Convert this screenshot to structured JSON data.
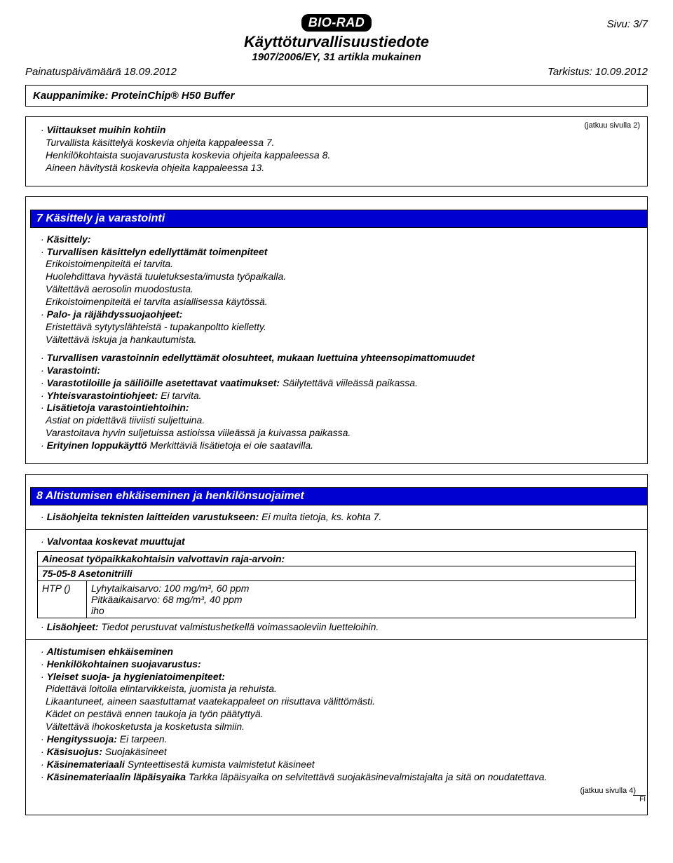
{
  "header": {
    "logo_text": "BIO-RAD",
    "doc_title": "Käyttöturvallisuustiedote",
    "doc_subtitle": "1907/2006/EY, 31 artikla mukainen",
    "page_number": "Sivu: 3/7",
    "print_date": "Painatuspäivämäärä 18.09.2012",
    "revision": "Tarkistus: 10.09.2012",
    "trade_name": "Kauppanimike: ProteinChip® H50 Buffer"
  },
  "section_refs": {
    "continued_from": "(jatkuu sivulla 2)",
    "heading": "Viittaukset muihin kohtiin",
    "lines": [
      "Turvallista käsittelyä koskevia ohjeita kappaleessa 7.",
      "Henkilökohtaista suojavarustusta koskevia ohjeita kappaleessa 8.",
      "Aineen hävitystä koskevia ohjeita kappaleessa 13."
    ]
  },
  "section7": {
    "title": "7 Käsittely ja varastointi",
    "handling_label": "Käsittely:",
    "precautions_label": "Turvallisen käsittelyn edellyttämät toimenpiteet",
    "precautions_lines": [
      "Erikoistoimenpiteitä ei tarvita.",
      "Huolehdittava hyvästä tuuletuksesta/imusta työpaikalla.",
      "Vältettävä aerosolin muodostusta.",
      "Erikoistoimenpiteitä ei tarvita asiallisessa käytössä."
    ],
    "fire_label": "Palo- ja räjähdyssuojaohjeet:",
    "fire_lines": [
      "Eristettävä sytytyslähteistä - tupakanpoltto kielletty.",
      "Vältettävä iskuja ja hankautumista."
    ],
    "storage_conditions_label": "Turvallisen varastoinnin edellyttämät olosuhteet, mukaan luettuina yhteensopimattomuudet",
    "storage_label": "Varastointi:",
    "storage_req_label": "Varastotiloille ja säiliöille asetettavat vaatimukset:",
    "storage_req_text": " Säilytettävä viileässä paikassa.",
    "combined_label": "Yhteisvarastointiohjeet:",
    "combined_text": " Ei tarvita.",
    "more_info_label": "Lisätietoja varastointiehtoihin:",
    "more_info_lines": [
      "Astiat on pidettävä tiiviisti suljettuina.",
      "Varastoitava hyvin suljetuissa astioissa viileässä ja kuivassa paikassa."
    ],
    "end_use_label": "Erityinen loppukäyttö",
    "end_use_text": " Merkittäviä lisätietoja ei ole saatavilla."
  },
  "section8": {
    "title": "8 Altistumisen ehkäiseminen ja henkilönsuojaimet",
    "tech_label": "Lisäohjeita teknisten laitteiden varustukseen:",
    "tech_text": " Ei muita tietoja, ks. kohta 7.",
    "control_params_label": "Valvontaa koskevat muuttujat",
    "table": {
      "header": "Aineosat työpaikkakohtaisin valvottavin raja-arvoin:",
      "substance": "75-05-8 Asetonitriili",
      "param_label": "HTP ()",
      "short_term": "Lyhytaikaisarvo: 100 mg/m³, 60 ppm",
      "long_term": "Pitkäaikaisarvo: 68 mg/m³, 40 ppm",
      "note": "iho"
    },
    "add_info_label": "Lisäohjeet:",
    "add_info_text": " Tiedot perustuvat valmistushetkellä voimassaoleviin luetteloihin.",
    "exposure_label": "Altistumisen ehkäiseminen",
    "ppe_label": "Henkilökohtainen suojavarustus:",
    "hygiene_label": "Yleiset suoja- ja hygieniatoimenpiteet:",
    "hygiene_lines": [
      "Pidettävä loitolla elintarvikkeista, juomista ja rehuista.",
      "Likaantuneet, aineen saastuttamat vaatekappaleet on riisuttava välittömästi.",
      "Kädet on pestävä ennen taukoja ja työn päätyttyä.",
      "Vältettävä ihokosketusta ja kosketusta silmiin."
    ],
    "resp_label": "Hengityssuoja:",
    "resp_text": " Ei tarpeen.",
    "hand_label": "Käsisuojus:",
    "hand_text": " Suojakäsineet",
    "glove_mat_label": "Käsinemateriaali",
    "glove_mat_text": " Synteettisestä kumista valmistetut käsineet",
    "glove_pen_label": "Käsinemateriaalin läpäisyaika",
    "glove_pen_text": " Tarkka läpäisyaika on selvitettävä suojakäsinevalmistajalta ja sitä on noudatettava.",
    "continued_on": "(jatkuu sivulla 4)",
    "lang_code": "FI"
  },
  "colors": {
    "heading_bg": "#0000d0",
    "heading_fg": "#ffffff",
    "border": "#000000",
    "page_bg": "#ffffff"
  }
}
